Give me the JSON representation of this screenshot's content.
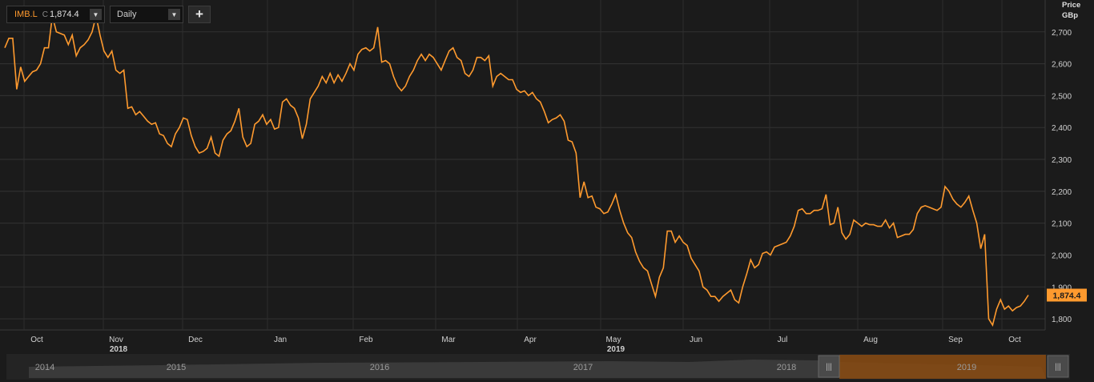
{
  "toolbar": {
    "symbol": "IMB.L",
    "close_prefix": "C",
    "close_value": "1,874.4",
    "period": "Daily",
    "add_label": "+"
  },
  "axis_unit": {
    "line1": "Price",
    "line2": "GBp"
  },
  "colors": {
    "accent": "#ff9a2e",
    "background": "#1b1b1b",
    "grid": "#333333"
  },
  "navigator": {
    "years": [
      "2014",
      "2015",
      "2016",
      "2017",
      "2018",
      "2019"
    ]
  },
  "chart_data": {
    "type": "line",
    "title": "",
    "xlabel": "",
    "ylabel": "Price GBp",
    "ylim": [
      1765,
      2800
    ],
    "y_ticks": [
      1800,
      1900,
      2000,
      2100,
      2200,
      2300,
      2400,
      2500,
      2600,
      2700
    ],
    "y_tick_labels": [
      "1,800",
      "1,900",
      "2,000",
      "2,100",
      "2,200",
      "2,300",
      "2,400",
      "2,500",
      "2,600",
      "2,700"
    ],
    "x_ticks": [
      {
        "label": "Oct",
        "year": ""
      },
      {
        "label": "Nov",
        "year": "2018"
      },
      {
        "label": "Dec",
        "year": ""
      },
      {
        "label": "Jan",
        "year": ""
      },
      {
        "label": "Feb",
        "year": ""
      },
      {
        "label": "Mar",
        "year": ""
      },
      {
        "label": "Apr",
        "year": ""
      },
      {
        "label": "May",
        "year": "2019"
      },
      {
        "label": "Jun",
        "year": ""
      },
      {
        "label": "Jul",
        "year": ""
      },
      {
        "label": "Aug",
        "year": ""
      },
      {
        "label": "Sep",
        "year": ""
      },
      {
        "label": "Oct",
        "year": ""
      }
    ],
    "last_value_label": "1,874.4",
    "grid": true,
    "series": [
      {
        "values": [
          2650,
          2680,
          2680,
          2520,
          2590,
          2545,
          2560,
          2575,
          2580,
          2600,
          2650,
          2650,
          2750,
          2700,
          2695,
          2690,
          2660,
          2690,
          2625,
          2650,
          2660,
          2675,
          2700,
          2750,
          2690,
          2640,
          2620,
          2640,
          2580,
          2570,
          2580,
          2460,
          2465,
          2440,
          2450,
          2435,
          2420,
          2410,
          2415,
          2380,
          2375,
          2350,
          2340,
          2380,
          2400,
          2430,
          2425,
          2375,
          2340,
          2320,
          2325,
          2335,
          2370,
          2320,
          2310,
          2360,
          2380,
          2390,
          2420,
          2460,
          2370,
          2340,
          2350,
          2410,
          2420,
          2440,
          2410,
          2425,
          2395,
          2400,
          2480,
          2490,
          2470,
          2460,
          2430,
          2365,
          2410,
          2490,
          2510,
          2530,
          2560,
          2540,
          2570,
          2540,
          2565,
          2545,
          2570,
          2600,
          2580,
          2630,
          2645,
          2650,
          2640,
          2650,
          2715,
          2605,
          2610,
          2600,
          2560,
          2530,
          2515,
          2530,
          2560,
          2580,
          2610,
          2630,
          2610,
          2630,
          2620,
          2600,
          2580,
          2610,
          2640,
          2650,
          2620,
          2610,
          2570,
          2560,
          2580,
          2620,
          2620,
          2610,
          2625,
          2530,
          2560,
          2570,
          2560,
          2550,
          2550,
          2520,
          2510,
          2515,
          2500,
          2510,
          2490,
          2480,
          2450,
          2415,
          2425,
          2430,
          2440,
          2420,
          2360,
          2355,
          2320,
          2180,
          2230,
          2180,
          2185,
          2150,
          2145,
          2130,
          2135,
          2160,
          2190,
          2140,
          2100,
          2070,
          2055,
          2010,
          1980,
          1960,
          1950,
          1910,
          1870,
          1930,
          1960,
          2075,
          2075,
          2040,
          2060,
          2040,
          2030,
          1990,
          1970,
          1950,
          1900,
          1890,
          1870,
          1870,
          1855,
          1870,
          1880,
          1890,
          1860,
          1850,
          1900,
          1940,
          1985,
          1960,
          1970,
          2005,
          2010,
          2000,
          2025,
          2030,
          2035,
          2040,
          2060,
          2090,
          2140,
          2145,
          2130,
          2130,
          2140,
          2140,
          2145,
          2190,
          2095,
          2100,
          2150,
          2070,
          2050,
          2065,
          2110,
          2100,
          2090,
          2100,
          2095,
          2095,
          2090,
          2090,
          2110,
          2085,
          2100,
          2055,
          2060,
          2065,
          2065,
          2080,
          2130,
          2150,
          2155,
          2150,
          2145,
          2140,
          2150,
          2215,
          2200,
          2175,
          2160,
          2150,
          2165,
          2185,
          2140,
          2100,
          2020,
          2065,
          1800,
          1780,
          1830,
          1860,
          1830,
          1840,
          1825,
          1835,
          1840,
          1855,
          1874.4
        ]
      }
    ]
  }
}
